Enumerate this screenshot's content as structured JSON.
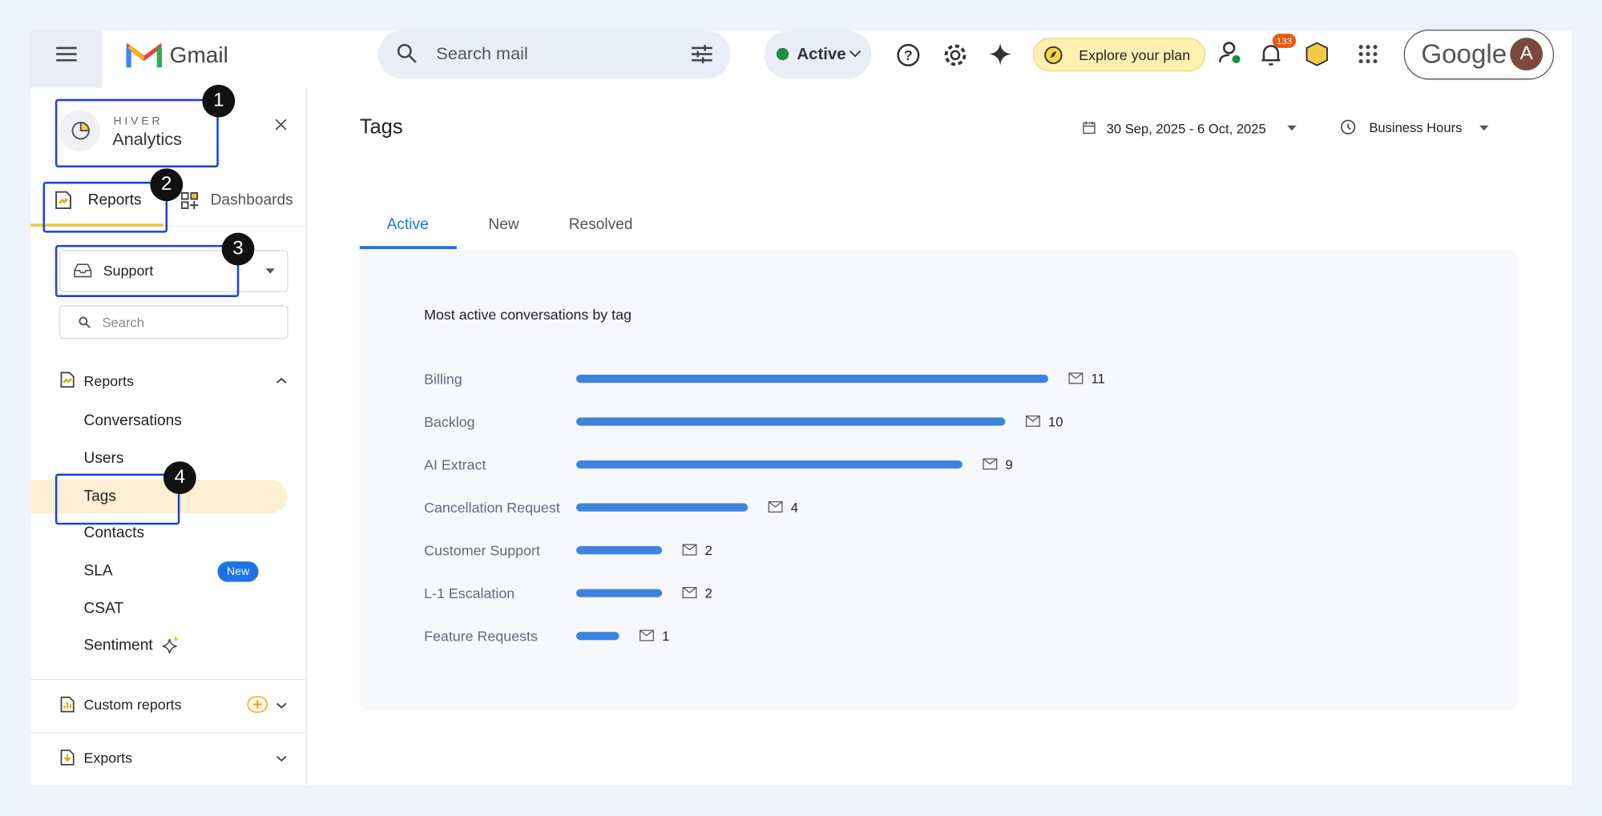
{
  "header": {
    "app": "Gmail",
    "search_placeholder": "Search mail",
    "status": "Active",
    "plan": "Explore your plan",
    "notifications": "133",
    "account_brand": "Google",
    "avatar": "A"
  },
  "sidebar": {
    "brand": "HIVER",
    "product": "Analytics",
    "tabs": [
      "Reports",
      "Dashboards"
    ],
    "inbox": "Support",
    "search_placeholder": "Search",
    "section": "Reports",
    "items": [
      "Conversations",
      "Users",
      "Tags",
      "Contacts",
      "SLA",
      "CSAT",
      "Sentiment"
    ],
    "badge": "New",
    "custom_reports": "Custom reports",
    "exports": "Exports"
  },
  "annotations": [
    "1",
    "2",
    "3",
    "4"
  ],
  "main": {
    "title": "Tags",
    "date_range": "30 Sep, 2025 - 6 Oct, 2025",
    "hours": "Business Hours",
    "tabs": [
      "Active",
      "New",
      "Resolved"
    ],
    "chart": {
      "type": "bar",
      "title": "Most active conversations by tag",
      "categories": [
        "Billing",
        "Backlog",
        "AI Extract",
        "Cancellation Request",
        "Customer Support",
        "L-1 Escalation",
        "Feature Requests"
      ],
      "values": [
        11,
        10,
        9,
        4,
        2,
        2,
        1
      ],
      "color": "#3d84e0"
    }
  }
}
